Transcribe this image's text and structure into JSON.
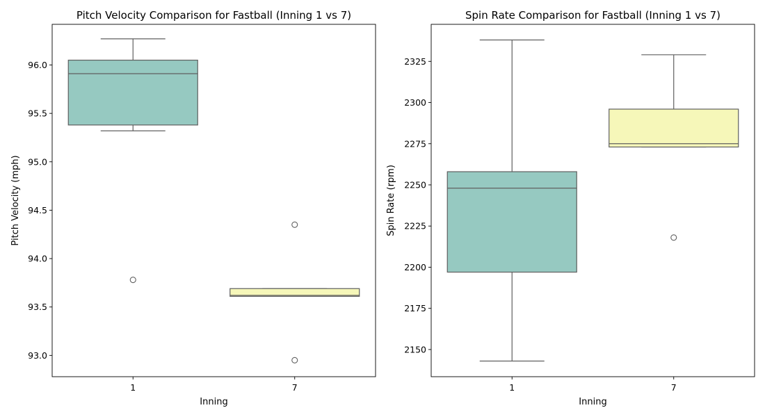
{
  "chart_data": [
    {
      "type": "box",
      "title": "Pitch Velocity Comparison for Fastball (Inning 1 vs 7)",
      "xlabel": "Inning",
      "ylabel": "Pitch Velocity (mph)",
      "categories": [
        "1",
        "7"
      ],
      "yticks": [
        "93.0",
        "93.5",
        "94.0",
        "94.5",
        "95.0",
        "95.5",
        "96.0"
      ],
      "ylim": [
        92.78,
        96.42
      ],
      "grid": false,
      "boxes": [
        {
          "category": "1",
          "color": "#96c9c1",
          "whisker_low": 95.32,
          "q1": 95.38,
          "median": 95.91,
          "q3": 96.05,
          "whisker_high": 96.27,
          "outliers": [
            93.78
          ]
        },
        {
          "category": "7",
          "color": "#f6f7b9",
          "whisker_low": 93.61,
          "q1": 93.61,
          "median": 93.62,
          "q3": 93.69,
          "whisker_high": 93.69,
          "outliers": [
            94.35,
            92.95
          ]
        }
      ]
    },
    {
      "type": "box",
      "title": "Spin Rate Comparison for Fastball (Inning 1 vs 7)",
      "xlabel": "Inning",
      "ylabel": "Spin Rate (rpm)",
      "categories": [
        "1",
        "7"
      ],
      "yticks": [
        "2150",
        "2175",
        "2200",
        "2225",
        "2250",
        "2275",
        "2300",
        "2325"
      ],
      "ylim": [
        2133.5,
        2347.5
      ],
      "grid": false,
      "boxes": [
        {
          "category": "1",
          "color": "#96c9c1",
          "whisker_low": 2143,
          "q1": 2197,
          "median": 2248,
          "q3": 2258,
          "whisker_high": 2338,
          "outliers": []
        },
        {
          "category": "7",
          "color": "#f6f7b9",
          "whisker_low": 2273,
          "q1": 2273,
          "median": 2275,
          "q3": 2296,
          "whisker_high": 2329,
          "outliers": [
            2218
          ]
        }
      ]
    }
  ]
}
